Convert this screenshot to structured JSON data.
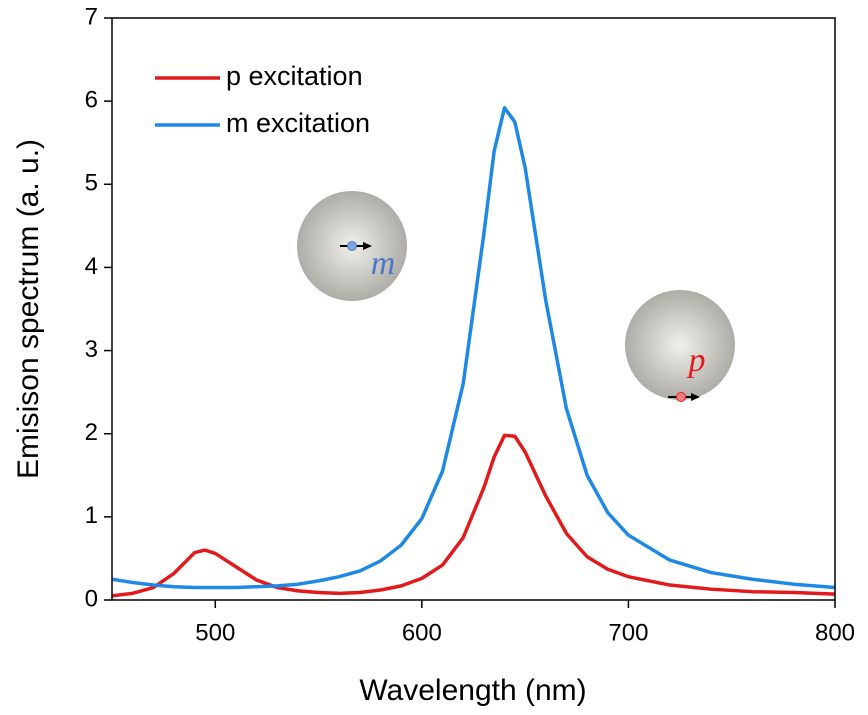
{
  "chart_data": {
    "type": "line",
    "x_label": "Wavelength (nm)",
    "y_label": "Emisison spectrum (a. u.)",
    "x": [
      450,
      460,
      470,
      480,
      490,
      495,
      500,
      510,
      520,
      530,
      540,
      550,
      560,
      570,
      580,
      590,
      600,
      610,
      620,
      630,
      635,
      640,
      645,
      650,
      660,
      670,
      680,
      690,
      700,
      720,
      740,
      760,
      780,
      800
    ],
    "series": [
      {
        "name": "p excitation",
        "color": "#e31a1c",
        "values": [
          0.05,
          0.08,
          0.15,
          0.32,
          0.57,
          0.6,
          0.56,
          0.4,
          0.24,
          0.15,
          0.11,
          0.09,
          0.08,
          0.09,
          0.12,
          0.17,
          0.26,
          0.42,
          0.75,
          1.35,
          1.72,
          1.98,
          1.97,
          1.78,
          1.25,
          0.8,
          0.52,
          0.37,
          0.28,
          0.18,
          0.13,
          0.1,
          0.09,
          0.07
        ]
      },
      {
        "name": "m excitation",
        "color": "#1e88e5",
        "values": [
          0.25,
          0.21,
          0.18,
          0.16,
          0.15,
          0.15,
          0.15,
          0.15,
          0.16,
          0.17,
          0.19,
          0.23,
          0.28,
          0.35,
          0.47,
          0.66,
          0.98,
          1.55,
          2.6,
          4.4,
          5.4,
          5.92,
          5.75,
          5.2,
          3.6,
          2.3,
          1.5,
          1.05,
          0.78,
          0.48,
          0.33,
          0.25,
          0.19,
          0.15
        ]
      }
    ],
    "xlim": [
      450,
      800
    ],
    "ylim": [
      0,
      7
    ],
    "xticks": [
      500,
      600,
      700,
      800
    ],
    "yticks": [
      0,
      1,
      2,
      3,
      4,
      5,
      6,
      7
    ],
    "legend": "upper left",
    "annotations": [
      {
        "text": "m",
        "color": "#4a78c8"
      },
      {
        "text": "p",
        "color": "#e31a1c"
      }
    ]
  }
}
